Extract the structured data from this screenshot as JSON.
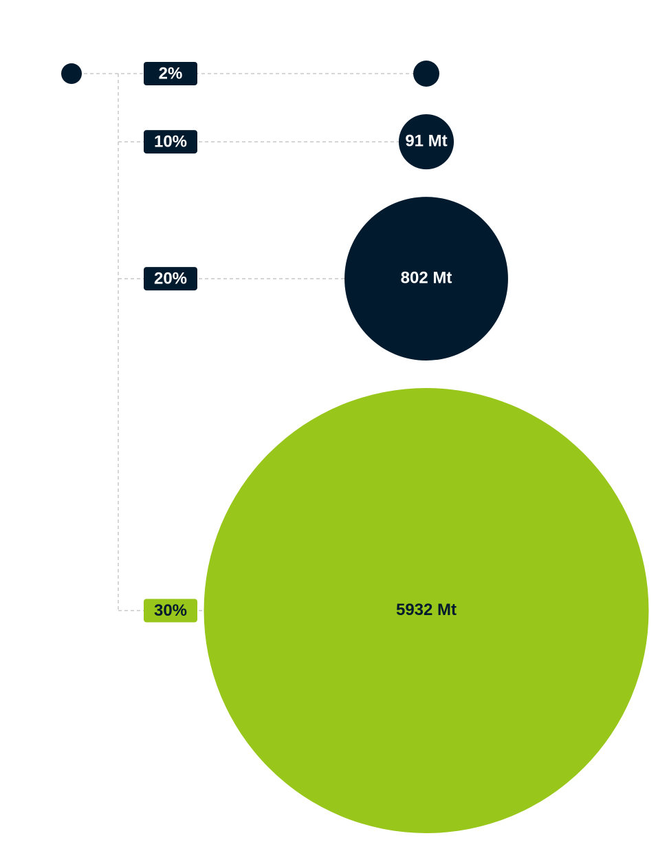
{
  "chart_data": {
    "type": "bubble",
    "categories": [
      "2%",
      "10%",
      "20%",
      "30%"
    ],
    "values": [
      null,
      91,
      802,
      5932
    ],
    "value_labels": [
      null,
      "91 Mt",
      "802 Mt",
      "5932 Mt"
    ],
    "colors": [
      "#021a2e",
      "#021a2e",
      "#021a2e",
      "#98c61a"
    ]
  }
}
